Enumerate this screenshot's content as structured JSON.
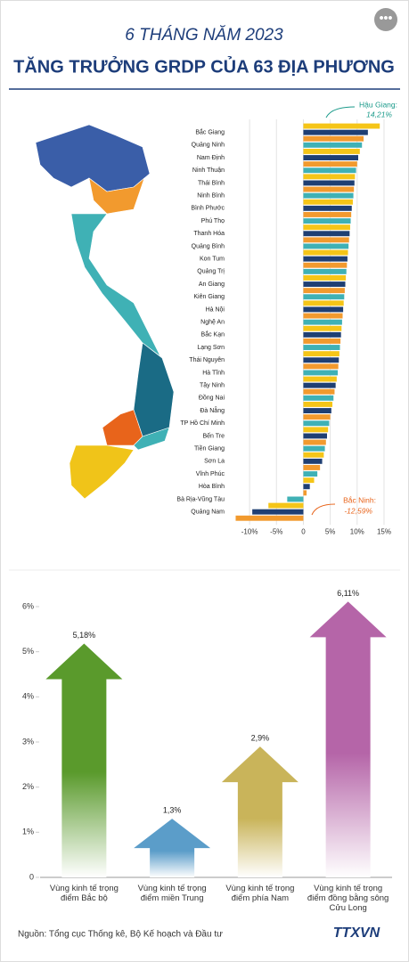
{
  "header": {
    "subtitle": "6 THÁNG NĂM 2023",
    "title": "TĂNG TRƯỞNG GRDP CỦA 63 ĐỊA PHƯƠNG"
  },
  "chart_data": [
    {
      "type": "hbar",
      "categories": [
        null,
        "Bắc Giang",
        null,
        "Quảng Ninh",
        null,
        "Nam Định",
        null,
        "Ninh Thuận",
        null,
        "Thái Bình",
        null,
        "Ninh Bình",
        null,
        "Bình Phước",
        null,
        "Phú Thọ",
        null,
        "Thanh Hóa",
        null,
        "Quảng Bình",
        null,
        "Kon Tum",
        null,
        "Quảng Trị",
        null,
        "An Giang",
        null,
        "Kiên Giang",
        null,
        "Hà Nội",
        null,
        "Nghệ An",
        null,
        "Bắc Kạn",
        null,
        "Lạng Sơn",
        null,
        "Thái Nguyên",
        null,
        "Hà Tĩnh",
        null,
        "Tây Ninh",
        null,
        "Đồng Nai",
        null,
        "Đà Nẵng",
        null,
        "TP Hồ Chí Minh",
        null,
        "Bến Tre",
        null,
        "Tiền Giang",
        null,
        "Sơn La",
        null,
        "Vĩnh Phúc",
        null,
        "Hòa Bình",
        null,
        "Bà Rịa-Vũng Tàu",
        null,
        "Quảng Nam",
        null
      ],
      "values": [
        14.21,
        12.0,
        11.2,
        10.9,
        10.5,
        10.2,
        10.0,
        9.8,
        9.6,
        9.5,
        9.4,
        9.3,
        9.2,
        9.0,
        8.9,
        8.8,
        8.7,
        8.6,
        8.5,
        8.4,
        8.3,
        8.2,
        8.1,
        8.0,
        7.9,
        7.8,
        7.7,
        7.6,
        7.5,
        7.4,
        7.3,
        7.2,
        7.1,
        7.0,
        6.9,
        6.8,
        6.7,
        6.6,
        6.5,
        6.4,
        6.2,
        6.0,
        5.8,
        5.6,
        5.4,
        5.2,
        5.0,
        4.8,
        4.6,
        4.4,
        4.2,
        4.0,
        3.8,
        3.5,
        3.1,
        2.6,
        2.0,
        1.2,
        0.6,
        -3.0,
        -6.5,
        -9.5,
        -12.59
      ],
      "value_labels": [
        "14,21%",
        null,
        null,
        null,
        null,
        null,
        null,
        null,
        null,
        null,
        null,
        null,
        null,
        null,
        null,
        null,
        null,
        null,
        null,
        null,
        null,
        null,
        null,
        null,
        null,
        null,
        null,
        null,
        null,
        null,
        null,
        null,
        null,
        null,
        null,
        null,
        null,
        null,
        null,
        null,
        null,
        null,
        null,
        null,
        null,
        null,
        null,
        null,
        null,
        null,
        null,
        null,
        null,
        null,
        null,
        null,
        null,
        null,
        null,
        null,
        null,
        null,
        "-12,59%"
      ],
      "annotations": [
        "Hậu Giang:",
        "Bắc Ninh:"
      ],
      "palette": [
        "#f5c518",
        "#1f3f73",
        "#f29a2e",
        "#3fb1b5"
      ],
      "xlim": [
        -13,
        16
      ],
      "xticks": [
        {
          "value": -10,
          "label": "-10%"
        },
        {
          "value": -5,
          "label": "-5%"
        },
        0,
        {
          "value": 5,
          "label": "5%"
        },
        {
          "value": 10,
          "label": "10%"
        },
        {
          "value": 15,
          "label": "15%"
        }
      ],
      "grid": true
    },
    {
      "type": "arrow",
      "categories": [
        "Vùng kinh tế trọng điểm Bắc bộ",
        "Vùng kinh tế trọng điểm miền Trung",
        "Vùng kinh tế trọng điểm phía Nam",
        "Vùng kinh tế trọng điểm đồng bằng sông Cửu Long"
      ],
      "values": [
        5.18,
        1.3,
        2.9,
        6.11
      ],
      "value_labels": [
        "5,18%",
        "1,3%",
        "2,9%",
        "6,11%"
      ],
      "colors": [
        "#5a9a2c",
        "#5b9dc9",
        "#c9b45a",
        "#b565a8"
      ],
      "ylim": [
        0,
        6
      ],
      "yticks": [
        0,
        {
          "value": 1,
          "label": "1%"
        },
        {
          "value": 2,
          "label": "2%"
        },
        {
          "value": 3,
          "label": "3%"
        },
        {
          "value": 4,
          "label": "4%"
        },
        {
          "value": 5,
          "label": "5%"
        },
        {
          "value": 6,
          "label": "6%"
        }
      ]
    }
  ],
  "source": "Nguồn: Tổng cục Thống kê, Bộ Kế hoạch và Đầu tư",
  "logo": "TTXVN"
}
